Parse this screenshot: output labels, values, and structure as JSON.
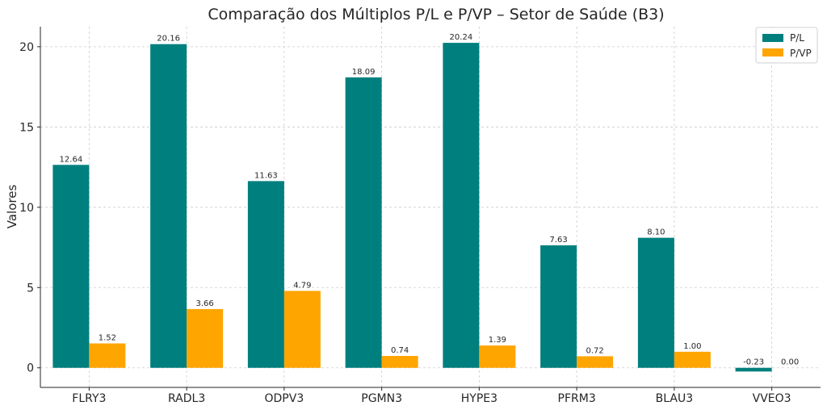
{
  "chart_data": {
    "type": "bar",
    "title": "Comparação dos Múltiplos P/L e P/VP – Setor de Saúde (B3)",
    "xlabel": "",
    "ylabel": "Valores",
    "categories": [
      "FLRY3",
      "RADL3",
      "ODPV3",
      "PGMN3",
      "HYPE3",
      "PFRM3",
      "BLAU3",
      "VVEO3"
    ],
    "series": [
      {
        "name": "P/L",
        "color": "#007f7f",
        "values": [
          12.64,
          20.16,
          11.63,
          18.09,
          20.24,
          7.63,
          8.1,
          -0.23
        ],
        "labels": [
          "12.64",
          "20.16",
          "11.63",
          "18.09",
          "20.24",
          "7.63",
          "8.10",
          "-0.23"
        ]
      },
      {
        "name": "P/VP",
        "color": "#ffa500",
        "values": [
          1.52,
          3.66,
          4.79,
          0.74,
          1.39,
          0.72,
          1.0,
          0.0
        ],
        "labels": [
          "1.52",
          "3.66",
          "4.79",
          "0.74",
          "1.39",
          "0.72",
          "1.00",
          "0.00"
        ]
      }
    ],
    "ylim": [
      -1.22,
      21.25
    ],
    "yticks": [
      0,
      5,
      10,
      15,
      20
    ],
    "grid": true,
    "legend_position": "top-right"
  }
}
